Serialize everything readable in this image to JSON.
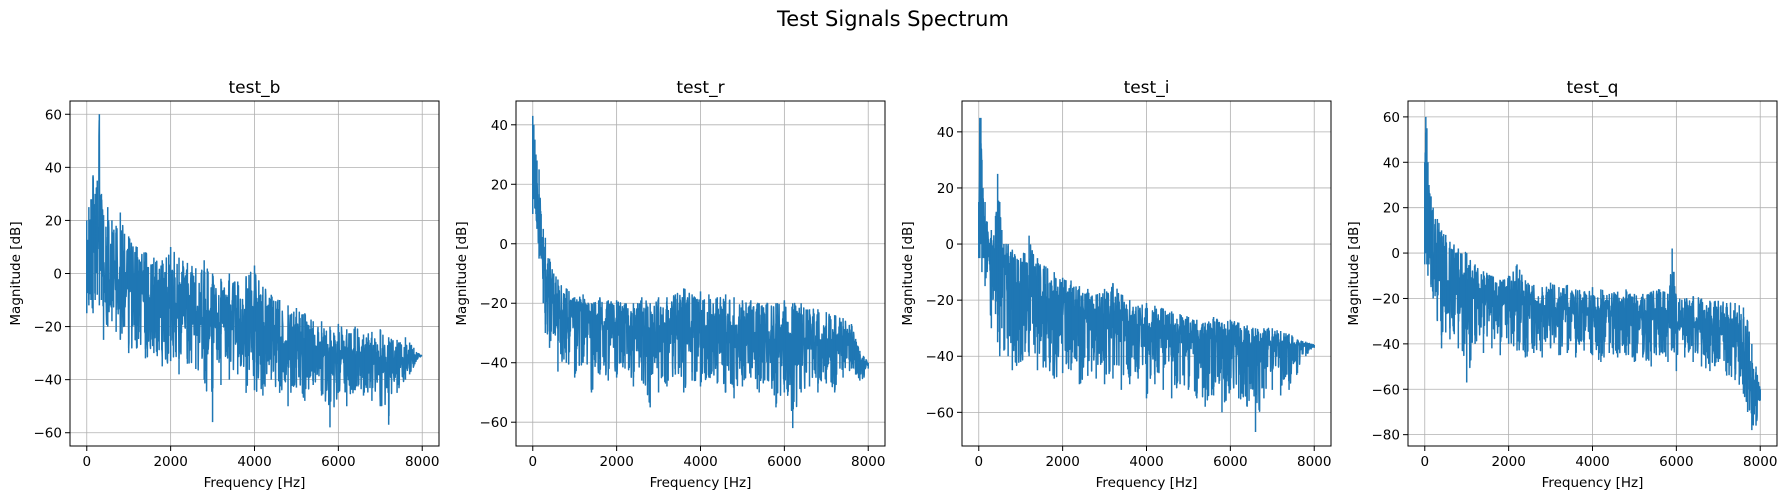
{
  "figure": {
    "suptitle": "Test Signals Spectrum"
  },
  "chart_data": [
    {
      "type": "line",
      "title": "test_b",
      "xlabel": "Frequency [Hz]",
      "ylabel": "Magnitude [dB]",
      "xlim": [
        -400,
        8400
      ],
      "ylim": [
        -65,
        65
      ],
      "xticks": [
        0,
        2000,
        4000,
        6000,
        8000
      ],
      "yticks": [
        -60,
        -40,
        -20,
        0,
        20,
        40,
        60
      ],
      "grid": true,
      "series": [
        {
          "color": "#1f77b4",
          "x": [
            0,
            50,
            100,
            150,
            200,
            250,
            300,
            350,
            400,
            500,
            600,
            700,
            800,
            900,
            1000,
            1200,
            1400,
            1600,
            1800,
            2000,
            2200,
            2400,
            2600,
            2800,
            3000,
            3200,
            3400,
            3600,
            3800,
            4000,
            4200,
            4400,
            4600,
            4800,
            5000,
            5200,
            5400,
            5600,
            5800,
            6000,
            6200,
            6400,
            6600,
            6800,
            7000,
            7200,
            7400,
            7600,
            7700,
            7800,
            7900,
            8000
          ],
          "upper": [
            20,
            25,
            28,
            37,
            30,
            35,
            60,
            30,
            22,
            25,
            20,
            18,
            23,
            15,
            14,
            10,
            8,
            6,
            5,
            10,
            6,
            4,
            2,
            5,
            0,
            -2,
            0,
            -3,
            -1,
            3,
            -5,
            -8,
            -10,
            -12,
            -13,
            -15,
            -18,
            -18,
            -20,
            -19,
            -21,
            -20,
            -23,
            -22,
            -21,
            -24,
            -25,
            -24,
            -26,
            -28,
            -30,
            -31
          ],
          "lower": [
            -15,
            -12,
            -10,
            -15,
            -10,
            -8,
            -12,
            -10,
            -25,
            -20,
            -18,
            -22,
            -25,
            -20,
            -30,
            -28,
            -32,
            -30,
            -35,
            -33,
            -38,
            -34,
            -36,
            -40,
            -56,
            -42,
            -40,
            -38,
            -45,
            -44,
            -46,
            -40,
            -45,
            -50,
            -43,
            -48,
            -42,
            -46,
            -58,
            -45,
            -50,
            -44,
            -46,
            -48,
            -50,
            -57,
            -45,
            -40,
            -38,
            -35,
            -32,
            -31
          ],
          "center": [
            5,
            8,
            10,
            12,
            10,
            10,
            15,
            8,
            0,
            2,
            0,
            -3,
            -2,
            -5,
            -6,
            -8,
            -10,
            -12,
            -13,
            -13,
            -15,
            -15,
            -16,
            -17,
            -20,
            -20,
            -20,
            -21,
            -22,
            -21,
            -24,
            -24,
            -26,
            -27,
            -27,
            -28,
            -29,
            -30,
            -31,
            -31,
            -31,
            -31,
            -32,
            -32,
            -33,
            -33,
            -34,
            -33,
            -32,
            -31,
            -31,
            -31
          ]
        }
      ]
    },
    {
      "type": "line",
      "title": "test_r",
      "xlabel": "Frequency [Hz]",
      "ylabel": "Magnitude [dB]",
      "xlim": [
        -400,
        8400
      ],
      "ylim": [
        -68,
        48
      ],
      "xticks": [
        0,
        2000,
        4000,
        6000,
        8000
      ],
      "yticks": [
        -60,
        -40,
        -20,
        0,
        20,
        40
      ],
      "grid": true,
      "series": [
        {
          "color": "#1f77b4",
          "x": [
            0,
            25,
            50,
            75,
            100,
            150,
            200,
            250,
            300,
            400,
            500,
            600,
            800,
            1000,
            1200,
            1400,
            1600,
            1800,
            2000,
            2200,
            2400,
            2600,
            2800,
            3000,
            3200,
            3400,
            3600,
            3800,
            4000,
            4200,
            4400,
            4600,
            4800,
            5000,
            5200,
            5400,
            5600,
            5800,
            6000,
            6200,
            6400,
            6600,
            6800,
            7000,
            7200,
            7400,
            7600,
            7700,
            7800,
            7900,
            8000
          ],
          "upper": [
            43,
            40,
            35,
            30,
            28,
            25,
            10,
            5,
            2,
            -5,
            -10,
            -12,
            -15,
            -18,
            -17,
            -20,
            -18,
            -19,
            -19,
            -20,
            -20,
            -18,
            -20,
            -18,
            -18,
            -17,
            -15,
            -17,
            -16,
            -17,
            -18,
            -17,
            -18,
            -19,
            -19,
            -20,
            -20,
            -20,
            -19,
            -20,
            -20,
            -22,
            -22,
            -23,
            -24,
            -25,
            -27,
            -32,
            -36,
            -38,
            -40
          ],
          "lower": [
            10,
            15,
            12,
            10,
            5,
            -5,
            -5,
            -20,
            -30,
            -35,
            -30,
            -43,
            -40,
            -45,
            -40,
            -50,
            -44,
            -46,
            -45,
            -42,
            -48,
            -46,
            -55,
            -50,
            -48,
            -44,
            -50,
            -46,
            -48,
            -45,
            -47,
            -50,
            -52,
            -48,
            -45,
            -50,
            -46,
            -55,
            -50,
            -62,
            -50,
            -48,
            -50,
            -47,
            -50,
            -45,
            -42,
            -44,
            -46,
            -45,
            -42
          ],
          "center": [
            30,
            25,
            20,
            15,
            12,
            5,
            0,
            -8,
            -12,
            -18,
            -20,
            -22,
            -24,
            -25,
            -26,
            -27,
            -27,
            -28,
            -28,
            -28,
            -29,
            -29,
            -30,
            -30,
            -30,
            -29,
            -28,
            -29,
            -29,
            -29,
            -30,
            -30,
            -31,
            -31,
            -31,
            -32,
            -32,
            -32,
            -32,
            -33,
            -33,
            -33,
            -34,
            -34,
            -34,
            -34,
            -34,
            -38,
            -40,
            -41,
            -41
          ]
        }
      ]
    },
    {
      "type": "line",
      "title": "test_i",
      "xlabel": "Frequency [Hz]",
      "ylabel": "Magnitude [dB]",
      "xlim": [
        -400,
        8400
      ],
      "ylim": [
        -72,
        51
      ],
      "xticks": [
        0,
        2000,
        4000,
        6000,
        8000
      ],
      "yticks": [
        -60,
        -40,
        -20,
        0,
        20,
        40
      ],
      "grid": true,
      "series": [
        {
          "color": "#1f77b4",
          "x": [
            0,
            25,
            50,
            75,
            100,
            150,
            200,
            300,
            400,
            450,
            500,
            550,
            600,
            700,
            800,
            1000,
            1200,
            1400,
            1600,
            1800,
            2000,
            2200,
            2400,
            2600,
            2800,
            3000,
            3200,
            3400,
            3600,
            3800,
            4000,
            4200,
            4400,
            4600,
            4800,
            5000,
            5200,
            5400,
            5600,
            5800,
            6000,
            6200,
            6400,
            6600,
            6800,
            7000,
            7200,
            7400,
            7600,
            7800,
            8000
          ],
          "upper": [
            15,
            45,
            45,
            30,
            20,
            15,
            8,
            5,
            10,
            25,
            15,
            5,
            0,
            0,
            -2,
            -5,
            3,
            -5,
            -8,
            -10,
            -12,
            -13,
            -15,
            -16,
            -18,
            -16,
            -14,
            -18,
            -20,
            -22,
            -21,
            -22,
            -23,
            -24,
            -25,
            -26,
            -27,
            -28,
            -26,
            -28,
            -27,
            -28,
            -29,
            -30,
            -30,
            -30,
            -31,
            -32,
            -34,
            -35,
            -36
          ],
          "lower": [
            -5,
            -5,
            0,
            -10,
            -5,
            -15,
            -10,
            -30,
            -25,
            -35,
            -40,
            -30,
            -38,
            -40,
            -45,
            -42,
            -40,
            -45,
            -44,
            -48,
            -46,
            -45,
            -50,
            -47,
            -48,
            -50,
            -48,
            -52,
            -50,
            -48,
            -55,
            -50,
            -52,
            -55,
            -50,
            -52,
            -55,
            -58,
            -54,
            -60,
            -52,
            -55,
            -58,
            -67,
            -55,
            -52,
            -54,
            -52,
            -46,
            -40,
            -37
          ],
          "center": [
            5,
            25,
            22,
            15,
            10,
            5,
            0,
            -8,
            -5,
            0,
            -5,
            -10,
            -12,
            -14,
            -15,
            -16,
            -17,
            -18,
            -19,
            -20,
            -21,
            -22,
            -23,
            -24,
            -25,
            -25,
            -25,
            -27,
            -28,
            -29,
            -30,
            -30,
            -31,
            -32,
            -32,
            -33,
            -34,
            -34,
            -34,
            -35,
            -35,
            -35,
            -36,
            -36,
            -36,
            -36,
            -36,
            -36,
            -36,
            -36,
            -36
          ]
        }
      ]
    },
    {
      "type": "line",
      "title": "test_q",
      "xlabel": "Frequency [Hz]",
      "ylabel": "Magnitude [dB]",
      "xlim": [
        -400,
        8400
      ],
      "ylim": [
        -85,
        67
      ],
      "xticks": [
        0,
        2000,
        4000,
        6000,
        8000
      ],
      "yticks": [
        -80,
        -60,
        -40,
        -20,
        0,
        20,
        40,
        60
      ],
      "grid": true,
      "series": [
        {
          "color": "#1f77b4",
          "x": [
            0,
            25,
            50,
            75,
            100,
            150,
            200,
            300,
            400,
            500,
            600,
            800,
            1000,
            1200,
            1400,
            1600,
            1800,
            2000,
            2200,
            2400,
            2600,
            2800,
            3000,
            3200,
            3400,
            3600,
            3800,
            4000,
            4200,
            4400,
            4600,
            4800,
            5000,
            5200,
            5400,
            5600,
            5800,
            5900,
            6000,
            6200,
            6400,
            6600,
            6800,
            7000,
            7200,
            7400,
            7500,
            7600,
            7700,
            7800,
            7900,
            8000
          ],
          "upper": [
            40,
            60,
            55,
            40,
            30,
            25,
            20,
            15,
            10,
            8,
            5,
            2,
            0,
            -5,
            -8,
            -10,
            -12,
            -10,
            -5,
            -12,
            -14,
            -15,
            -13,
            -15,
            -14,
            -16,
            -17,
            -15,
            -16,
            -18,
            -17,
            -16,
            -18,
            -18,
            -17,
            -16,
            -18,
            2,
            -20,
            -20,
            -19,
            -20,
            -21,
            -21,
            -22,
            -22,
            -23,
            -24,
            -30,
            -40,
            -50,
            -60
          ],
          "lower": [
            -5,
            0,
            -5,
            -10,
            -5,
            -15,
            -20,
            -30,
            -42,
            -35,
            -38,
            -42,
            -57,
            -40,
            -44,
            -42,
            -45,
            -40,
            -43,
            -46,
            -44,
            -46,
            -42,
            -45,
            -44,
            -46,
            -43,
            -45,
            -48,
            -44,
            -46,
            -45,
            -48,
            -46,
            -50,
            -45,
            -48,
            -42,
            -52,
            -46,
            -48,
            -50,
            -52,
            -48,
            -54,
            -56,
            -58,
            -62,
            -70,
            -78,
            -76,
            -65
          ],
          "center": [
            20,
            30,
            25,
            15,
            10,
            5,
            0,
            -5,
            -10,
            -12,
            -14,
            -15,
            -16,
            -17,
            -18,
            -19,
            -20,
            -20,
            -21,
            -22,
            -23,
            -24,
            -24,
            -25,
            -25,
            -25,
            -26,
            -26,
            -27,
            -27,
            -28,
            -28,
            -28,
            -29,
            -29,
            -29,
            -30,
            -30,
            -31,
            -31,
            -31,
            -32,
            -32,
            -33,
            -34,
            -35,
            -38,
            -42,
            -50,
            -60,
            -65,
            -62
          ]
        }
      ]
    }
  ]
}
